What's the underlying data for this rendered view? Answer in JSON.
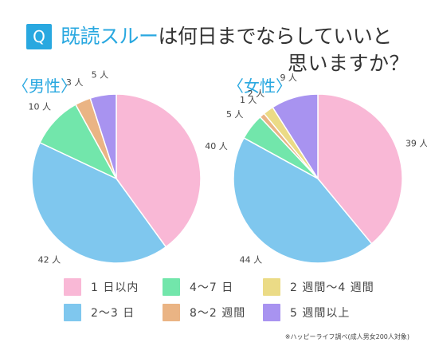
{
  "title": {
    "badge": "Q",
    "accent": "既読スルー",
    "line1_rest": "は何日までならしていいと",
    "line2": "思いますか？"
  },
  "legend": [
    {
      "label": "1 日以内",
      "color": "#f9b8d6"
    },
    {
      "label": "4〜7 日",
      "color": "#72e6ab"
    },
    {
      "label": "2 週間〜4 週間",
      "color": "#ebdb86"
    },
    {
      "label": "2〜3 日",
      "color": "#7fc7ee"
    },
    {
      "label": "8〜2 週間",
      "color": "#eab484"
    },
    {
      "label": "5 週間以上",
      "color": "#a893f0"
    }
  ],
  "footnote": "※ハッピーライフ調べ(成人男女200人対象)",
  "chart_data": [
    {
      "type": "pie",
      "title": "〈男性〉",
      "categories": [
        "1 日以内",
        "2〜3 日",
        "4〜7 日",
        "8〜2 週間",
        "5 週間以上"
      ],
      "values": [
        40,
        42,
        10,
        3,
        5
      ],
      "labels": [
        "40 人",
        "42 人",
        "10 人",
        "3 人",
        "5 人"
      ],
      "colors": [
        "#f9b8d6",
        "#7fc7ee",
        "#72e6ab",
        "#eab484",
        "#a893f0"
      ]
    },
    {
      "type": "pie",
      "title": "〈女性〉",
      "categories": [
        "1 日以内",
        "2〜3 日",
        "4〜7 日",
        "8〜2 週間",
        "2 週間〜4 週間",
        "5 週間以上"
      ],
      "values": [
        39,
        44,
        5,
        1,
        2,
        9
      ],
      "labels": [
        "39 人",
        "44 人",
        "5 人",
        "1 人",
        "2 人",
        "9 人"
      ],
      "colors": [
        "#f9b8d6",
        "#7fc7ee",
        "#72e6ab",
        "#eab484",
        "#ebdb86",
        "#a893f0"
      ]
    }
  ]
}
